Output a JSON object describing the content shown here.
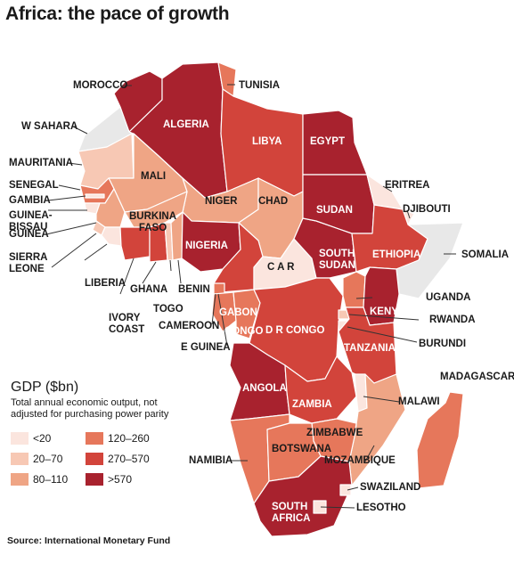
{
  "title": "Africa: the pace of growth",
  "legend": {
    "title": "GDP ($bn)",
    "note": "Total annual economic output, not\nadjusted for purchasing power parity",
    "classes": [
      {
        "label": "<20",
        "color": "#fbe5de"
      },
      {
        "label": "20–70",
        "color": "#f7c8b4"
      },
      {
        "label": "80–110",
        "color": "#efa585"
      },
      {
        "label": "120–260",
        "color": "#e6775b"
      },
      {
        "label": "270–570",
        "color": "#d2443b"
      },
      {
        "label": ">570",
        "color": "#a8222e"
      }
    ]
  },
  "colors": {
    "no_data": "#e8e8e8",
    "border": "#ffffff",
    "leader": "#333333"
  },
  "countries": {
    "morocco": {
      "label": "MOROCCO",
      "gdp_class": ">570"
    },
    "algeria": {
      "label": "ALGERIA",
      "gdp_class": ">570"
    },
    "tunisia": {
      "label": "TUNISIA",
      "gdp_class": "120–260"
    },
    "libya": {
      "label": "LIBYA",
      "gdp_class": "270–570"
    },
    "egypt": {
      "label": "EGYPT",
      "gdp_class": ">570"
    },
    "w_sahara": {
      "label": "W SAHARA",
      "gdp_class": "no data"
    },
    "mauritania": {
      "label": "MAURITANIA",
      "gdp_class": "20–70"
    },
    "mali": {
      "label": "MALI",
      "gdp_class": "80–110"
    },
    "niger": {
      "label": "NIGER",
      "gdp_class": "80–110"
    },
    "chad": {
      "label": "CHAD",
      "gdp_class": "80–110"
    },
    "sudan": {
      "label": "SUDAN",
      "gdp_class": ">570"
    },
    "eritrea": {
      "label": "ERITREA",
      "gdp_class": "<20"
    },
    "djibouti": {
      "label": "DJIBOUTI",
      "gdp_class": "<20"
    },
    "somalia": {
      "label": "SOMALIA",
      "gdp_class": "no data"
    },
    "ethiopia": {
      "label": "ETHIOPIA",
      "gdp_class": "270–570"
    },
    "senegal": {
      "label": "SENEGAL",
      "gdp_class": "120–260"
    },
    "gambia": {
      "label": "GAMBIA",
      "gdp_class": "<20"
    },
    "guinea_bissau": {
      "label": "GUINEA-\nBISSAU",
      "gdp_class": "<20"
    },
    "guinea": {
      "label": "GUINEA",
      "gdp_class": "80–110"
    },
    "sierra_leone": {
      "label": "SIERRA\nLEONE",
      "gdp_class": "20–70"
    },
    "liberia": {
      "label": "LIBERIA",
      "gdp_class": "<20"
    },
    "burkina_faso": {
      "label": "BURKINA\nFASO",
      "gdp_class": "80–110"
    },
    "ivory_coast": {
      "label": "IVORY\nCOAST",
      "gdp_class": "270–570"
    },
    "ghana": {
      "label": "GHANA",
      "gdp_class": "270–570"
    },
    "togo": {
      "label": "TOGO",
      "gdp_class": "20–70"
    },
    "benin": {
      "label": "BENIN",
      "gdp_class": "80–110"
    },
    "nigeria": {
      "label": "NIGERIA",
      "gdp_class": ">570"
    },
    "south_sudan": {
      "label": "SOUTH\nSUDAN",
      "gdp_class": ">570"
    },
    "car": {
      "label": "C A R",
      "gdp_class": "<20"
    },
    "cameroon": {
      "label": "CAMEROON",
      "gdp_class": "270–570"
    },
    "e_guinea": {
      "label": "E GUINEA",
      "gdp_class": "120–260"
    },
    "gabon": {
      "label": "GABON",
      "gdp_class": "120–260"
    },
    "congo": {
      "label": "CONGO",
      "gdp_class": "120–260"
    },
    "dr_congo": {
      "label": "D R CONGO",
      "gdp_class": "270–570"
    },
    "uganda": {
      "label": "UGANDA",
      "gdp_class": "120–260"
    },
    "kenya": {
      "label": "KENYA",
      "gdp_class": ">570"
    },
    "rwanda": {
      "label": "RWANDA",
      "gdp_class": "20–70"
    },
    "burundi": {
      "label": "BURUNDI",
      "gdp_class": "<20"
    },
    "tanzania": {
      "label": "TANZANIA",
      "gdp_class": "270–570"
    },
    "angola": {
      "label": "ANGOLA",
      "gdp_class": ">570"
    },
    "zambia": {
      "label": "ZAMBIA",
      "gdp_class": "270–570"
    },
    "malawi": {
      "label": "MALAWI",
      "gdp_class": "<20"
    },
    "mozambique": {
      "label": "MOZAMBIQUE",
      "gdp_class": "80–110"
    },
    "madagascar": {
      "label": "MADAGASCAR",
      "gdp_class": "120–260"
    },
    "zimbabwe": {
      "label": "ZIMBABWE",
      "gdp_class": "120–260"
    },
    "namibia": {
      "label": "NAMIBIA",
      "gdp_class": "120–260"
    },
    "botswana": {
      "label": "BOTSWANA",
      "gdp_class": "120–260"
    },
    "south_africa": {
      "label": "SOUTH\nAFRICA",
      "gdp_class": ">570"
    },
    "swaziland": {
      "label": "SWAZILAND",
      "gdp_class": "<20"
    },
    "lesotho": {
      "label": "LESOTHO",
      "gdp_class": "<20"
    }
  },
  "source": "Source: International Monetary Fund"
}
